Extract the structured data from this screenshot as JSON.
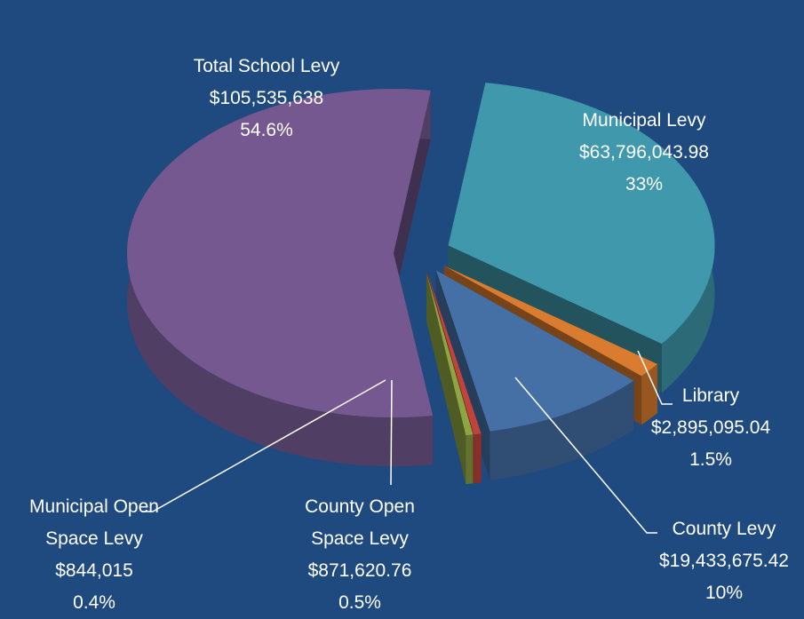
{
  "chart_data": {
    "type": "pie",
    "categories": [
      "Municipal Levy",
      "Library",
      "County Levy",
      "County Open Space Levy",
      "Municipal Open Space Levy",
      "Total School Levy"
    ],
    "values": [
      63796043.98,
      2895095.04,
      19433675.42,
      871620.76,
      844015,
      105535638
    ],
    "value_labels": [
      "$63,796,043.98",
      "$2,895,095.04",
      "$19,433,675.42",
      "$871,620.76",
      "$844,015",
      "$105,535,638"
    ],
    "percent_labels": [
      "33%",
      "1.5%",
      "10%",
      "0.5%",
      "0.4%",
      "54.6%"
    ],
    "colors": [
      "#3f98ab",
      "#d97c2f",
      "#4570a6",
      "#c0433d",
      "#8ea543",
      "#74588f"
    ]
  }
}
